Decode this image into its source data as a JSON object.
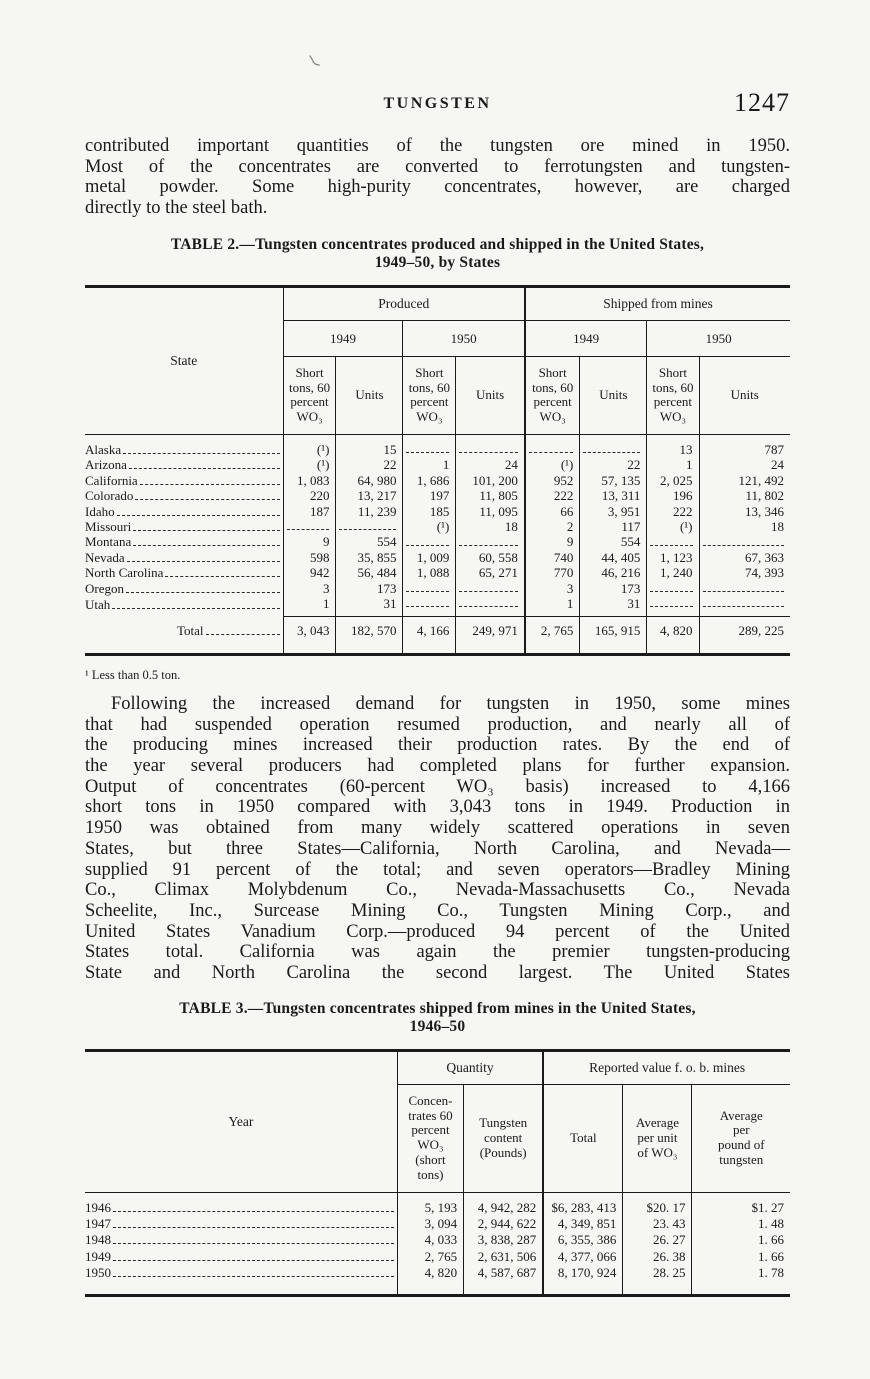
{
  "page": {
    "running_head": "TUNGSTEN",
    "page_number": "1247"
  },
  "para1": {
    "lines": [
      "contributed important quantities of the tungsten ore mined in 1950.",
      "Most of the concentrates are converted to ferrotungsten and tungsten-",
      "metal powder.  Some high-purity concentrates, however, are charged",
      "directly to the steel bath."
    ]
  },
  "table2": {
    "caption": [
      "TABLE 2.—Tungsten concentrates produced and shipped in the United States,",
      "1949–50, by States"
    ],
    "header": {
      "state": "State",
      "produced": "Produced",
      "shipped": "Shipped from mines",
      "years": [
        "1949",
        "1950",
        "1949",
        "1950"
      ],
      "short_tons": "Short\ntons, 60\npercent\nWO₃",
      "units": "Units"
    },
    "rows": [
      {
        "state": "Alaska",
        "values": [
          "(¹)",
          "15",
          "",
          "",
          "",
          "",
          "13",
          "787"
        ]
      },
      {
        "state": "Arizona",
        "values": [
          "(¹)",
          "22",
          "1",
          "24",
          "(¹)",
          "22",
          "1",
          "24"
        ]
      },
      {
        "state": "California",
        "values": [
          "1, 083",
          "64, 980",
          "1, 686",
          "101, 200",
          "952",
          "57, 135",
          "2, 025",
          "121, 492"
        ]
      },
      {
        "state": "Colorado",
        "values": [
          "220",
          "13, 217",
          "197",
          "11, 805",
          "222",
          "13, 311",
          "196",
          "11, 802"
        ]
      },
      {
        "state": "Idaho",
        "values": [
          "187",
          "11, 239",
          "185",
          "11, 095",
          "66",
          "3, 951",
          "222",
          "13, 346"
        ]
      },
      {
        "state": "Missouri",
        "values": [
          "",
          "",
          "(¹)",
          "18",
          "2",
          "117",
          "(¹)",
          "18"
        ]
      },
      {
        "state": "Montana",
        "values": [
          "9",
          "554",
          "",
          "",
          "9",
          "554",
          "",
          ""
        ]
      },
      {
        "state": "Nevada",
        "values": [
          "598",
          "35, 855",
          "1, 009",
          "60, 558",
          "740",
          "44, 405",
          "1, 123",
          "67, 363"
        ]
      },
      {
        "state": "North Carolina",
        "values": [
          "942",
          "56, 484",
          "1, 088",
          "65, 271",
          "770",
          "46, 216",
          "1, 240",
          "74, 393"
        ]
      },
      {
        "state": "Oregon",
        "values": [
          "3",
          "173",
          "",
          "",
          "3",
          "173",
          "",
          ""
        ]
      },
      {
        "state": "Utah",
        "values": [
          "1",
          "31",
          "",
          "",
          "1",
          "31",
          "",
          ""
        ]
      }
    ],
    "total": {
      "label": "Total",
      "values": [
        "3, 043",
        "182, 570",
        "4, 166",
        "249, 971",
        "2, 765",
        "165, 915",
        "4, 820",
        "289, 225"
      ]
    },
    "footnote": "¹ Less than 0.5 ton."
  },
  "para2": {
    "lines": [
      "Following the increased demand for tungsten in 1950, some mines",
      "that had suspended operation resumed production, and nearly all of",
      "the producing mines increased their production rates.  By the end of",
      "the year several producers had completed plans for further expansion.",
      "Output of concentrates (60-percent WO₃ basis) increased to 4,166",
      "short tons in 1950 compared with 3,043 tons in 1949.  Production in",
      "1950 was obtained from many widely scattered operations in seven",
      "States, but three States—California, North Carolina, and Nevada—",
      "supplied 91 percent of the total; and seven operators—Bradley Mining",
      "Co., Climax Molybdenum Co., Nevada-Massachusetts Co., Nevada",
      "Scheelite, Inc., Surcease Mining Co., Tungsten Mining Corp., and",
      "United States Vanadium Corp.—produced 94 percent of the United",
      "States total.  California was again the premier tungsten-producing",
      "State and North Carolina the second largest.  The United States"
    ]
  },
  "table3": {
    "caption": [
      "TABLE 3.—Tungsten concentrates shipped from mines in the United States,",
      "1946–50"
    ],
    "header": {
      "year": "Year",
      "quantity": "Quantity",
      "value": "Reported value f. o. b. mines",
      "cols": [
        "Concen-\ntrates 60\npercent\nWO₃\n(short\ntons)",
        "Tungsten\ncontent\n(Pounds)",
        "Total",
        "Average\nper unit\nof WO₃",
        "Average\nper\npound of\ntungsten"
      ]
    },
    "rows": [
      {
        "year": "1946",
        "values": [
          "5, 193",
          "4, 942, 282",
          "$6, 283, 413",
          "$20. 17",
          "$1. 27"
        ]
      },
      {
        "year": "1947",
        "values": [
          "3, 094",
          "2, 944, 622",
          "4, 349, 851",
          "23. 43",
          "1. 48"
        ]
      },
      {
        "year": "1948",
        "values": [
          "4, 033",
          "3, 838, 287",
          "6, 355, 386",
          "26. 27",
          "1. 66"
        ]
      },
      {
        "year": "1949",
        "values": [
          "2, 765",
          "2, 631, 506",
          "4, 377, 066",
          "26. 38",
          "1. 66"
        ]
      },
      {
        "year": "1950",
        "values": [
          "4, 820",
          "4, 587, 687",
          "8, 170, 924",
          "28. 25",
          "1. 78"
        ]
      }
    ]
  }
}
